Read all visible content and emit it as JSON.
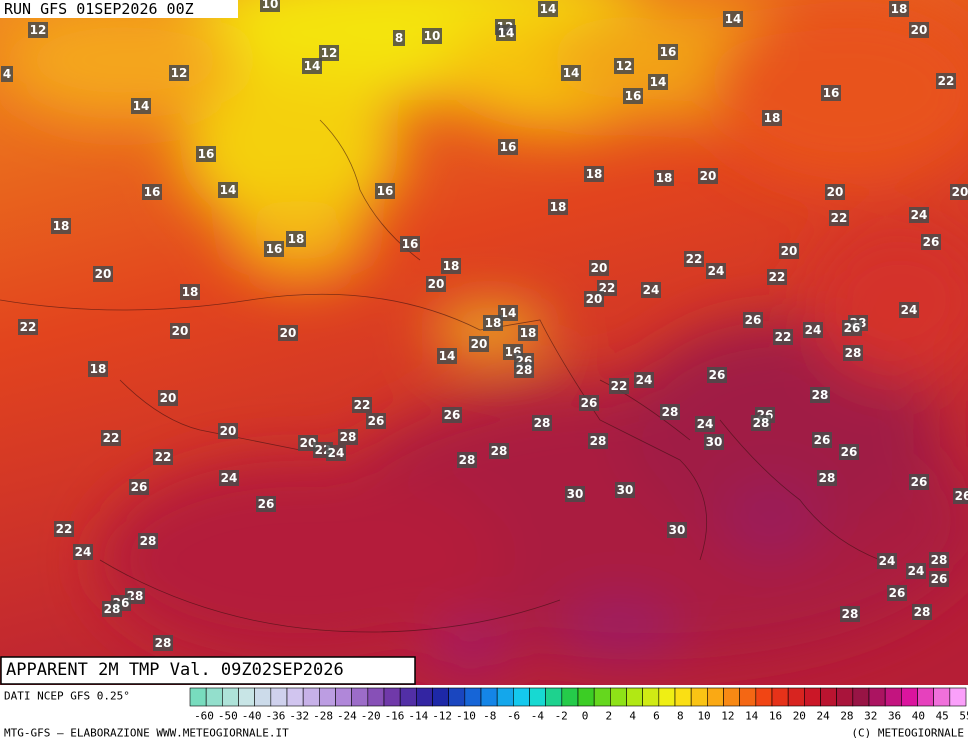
{
  "header": {
    "run": "RUN GFS 01SEP2026 00Z",
    "title": "APPARENT 2M TMP Val. 09Z02SEP2026"
  },
  "map": {
    "labels": [
      12,
      10,
      8,
      10,
      12,
      14,
      14,
      14,
      18,
      20,
      4,
      12,
      14,
      12,
      14,
      12,
      16,
      14,
      16,
      16,
      22,
      14,
      18,
      16,
      16,
      16,
      14,
      16,
      18,
      18,
      20,
      20,
      20,
      18,
      18,
      22,
      24,
      16,
      16,
      18,
      26,
      20,
      20,
      18,
      20,
      22,
      24,
      22,
      20,
      22,
      20,
      24,
      18,
      22,
      20,
      20,
      14,
      18,
      18,
      26,
      24,
      22,
      28,
      26,
      24,
      20,
      16,
      14,
      26,
      28,
      28,
      18,
      22,
      24,
      26,
      20,
      22,
      26,
      26,
      26,
      28,
      24,
      26,
      28,
      28,
      20,
      22,
      28,
      20,
      22,
      24,
      28,
      28,
      30,
      26,
      26,
      28,
      28,
      22,
      24,
      28,
      26,
      26,
      30,
      30,
      26,
      26,
      22,
      30,
      28,
      24,
      24,
      28,
      24,
      26,
      28,
      26,
      28,
      26,
      28,
      28,
      28
    ]
  },
  "footer": {
    "source": "DATI NCEP GFS 0.25°",
    "credit": "MTG-GFS — ELABORAZIONE WWW.METEOGIORNALE.IT",
    "copyright": "(C) METEOGIORNALE"
  },
  "legend": {
    "ticks": [
      -60,
      -50,
      -40,
      -36,
      -32,
      -28,
      -24,
      -20,
      -16,
      -14,
      -12,
      -10,
      -8,
      -6,
      -4,
      -2,
      0,
      2,
      4,
      6,
      8,
      10,
      12,
      14,
      16,
      20,
      24,
      28,
      32,
      36,
      40,
      45,
      55
    ]
  }
}
